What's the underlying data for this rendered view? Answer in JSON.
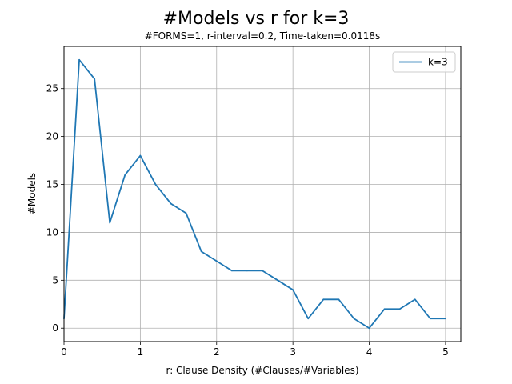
{
  "chart_data": {
    "type": "line",
    "title": "#Models vs r for k=3",
    "subtitle": "#FORMS=1, r-interval=0.2, Time-taken=0.0118s",
    "xlabel": "r: Clause Density (#Clauses/#Variables)",
    "ylabel": "#Models",
    "xlim": [
      0,
      5.2
    ],
    "ylim": [
      -1.4,
      29.4
    ],
    "xticks": [
      0,
      1,
      2,
      3,
      4,
      5
    ],
    "yticks": [
      0,
      5,
      10,
      15,
      20,
      25
    ],
    "grid": true,
    "legend_position": "top-right",
    "series": [
      {
        "name": "k=3",
        "color": "#1f77b4",
        "x": [
          0,
          0.2,
          0.4,
          0.6,
          0.8,
          1.0,
          1.2,
          1.4,
          1.6,
          1.8,
          2.0,
          2.2,
          2.4,
          2.6,
          2.8,
          3.0,
          3.2,
          3.4,
          3.6,
          3.8,
          4.0,
          4.2,
          4.4,
          4.6,
          4.8,
          5.0
        ],
        "y": [
          1,
          28,
          26,
          11,
          16,
          18,
          15,
          13,
          12,
          8,
          7,
          6,
          6,
          6,
          5,
          4,
          1,
          3,
          3,
          1,
          0,
          2,
          2,
          3,
          1,
          1
        ]
      }
    ]
  }
}
